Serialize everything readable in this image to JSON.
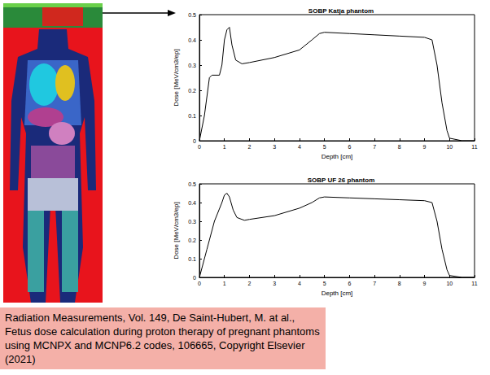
{
  "chart_data": [
    {
      "type": "line",
      "title": "SOBP Katja phantom",
      "x_label": "Depth [cm]",
      "y_label": "Dose [MeV/cm3/ep]",
      "x": [
        0,
        0.2,
        0.4,
        0.5,
        0.8,
        0.9,
        1.0,
        1.1,
        1.2,
        1.3,
        1.45,
        1.7,
        2,
        3,
        4,
        4.5,
        4.8,
        5,
        6,
        7,
        8,
        9,
        9.3,
        9.5,
        9.7,
        9.9,
        10,
        10.5,
        11
      ],
      "values": [
        0,
        0.1,
        0.25,
        0.26,
        0.26,
        0.3,
        0.4,
        0.44,
        0.45,
        0.38,
        0.32,
        0.305,
        0.31,
        0.33,
        0.36,
        0.4,
        0.425,
        0.43,
        0.425,
        0.42,
        0.415,
        0.41,
        0.4,
        0.3,
        0.15,
        0.04,
        0.01,
        0,
        0
      ],
      "color": "#000000",
      "xlim": [
        0,
        11
      ],
      "xticks": [
        0,
        1,
        2,
        3,
        4,
        5,
        6,
        7,
        8,
        9,
        10,
        11
      ],
      "ylim": [
        0,
        0.5
      ],
      "yticks": [
        0,
        0.1,
        0.2,
        0.3,
        0.4,
        0.5
      ],
      "grid": false
    },
    {
      "type": "line",
      "title": "SOBP UF 26 phantom",
      "x_label": "Depth [cm]",
      "y_label": "Dose [MeV/cm3/ep]",
      "x": [
        0,
        0.3,
        0.6,
        0.9,
        1.0,
        1.1,
        1.2,
        1.35,
        1.5,
        1.8,
        2,
        3,
        4,
        4.5,
        4.8,
        5,
        6,
        7,
        8,
        9,
        9.3,
        9.5,
        9.7,
        9.9,
        10,
        10.5,
        11
      ],
      "values": [
        0,
        0.15,
        0.3,
        0.4,
        0.44,
        0.45,
        0.43,
        0.36,
        0.32,
        0.305,
        0.31,
        0.33,
        0.37,
        0.4,
        0.425,
        0.43,
        0.425,
        0.42,
        0.415,
        0.41,
        0.4,
        0.3,
        0.15,
        0.04,
        0.01,
        0,
        0
      ],
      "color": "#000000",
      "xlim": [
        0,
        11
      ],
      "xticks": [
        0,
        1,
        2,
        3,
        4,
        5,
        6,
        7,
        8,
        9,
        10,
        11
      ],
      "ylim": [
        0,
        0.5
      ],
      "yticks": [
        0,
        0.1,
        0.2,
        0.3,
        0.4,
        0.5
      ],
      "grid": false
    }
  ],
  "citation": "Radiation Measurements, Vol. 149, De Saint-Hubert, M. at al., Fetus dose calculation during proton therapy of pregnant phantoms using MCNPX and MCNP6.2 codes, 106665, Copyright Elsevier (2021)"
}
